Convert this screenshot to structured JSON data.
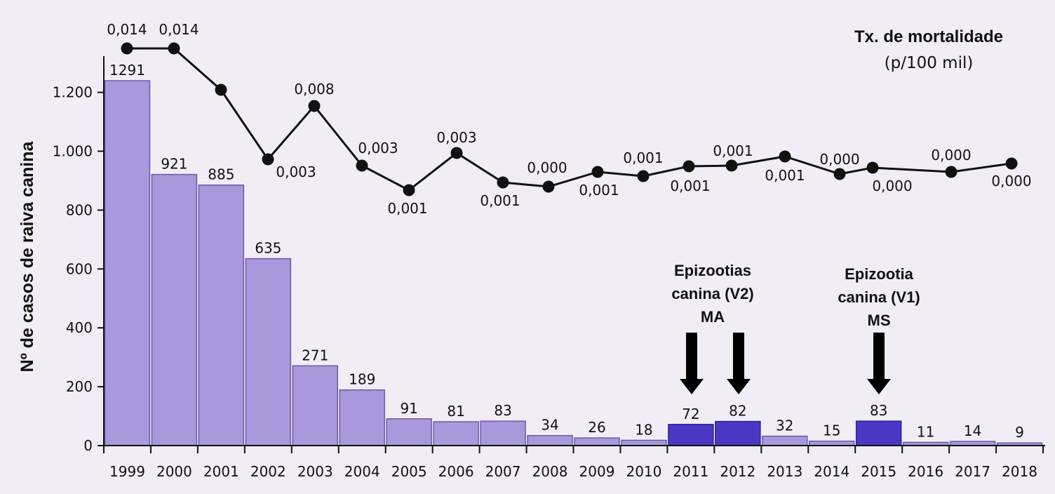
{
  "chart_data": {
    "type": "bar",
    "ylabel": "Nº de casos de raiva canina",
    "ylim": [
      0,
      1200
    ],
    "yticks": [
      0,
      200,
      400,
      600,
      800,
      1000,
      1200
    ],
    "ytick_labels": [
      "0",
      "200",
      "400",
      "600",
      "800",
      "1.000",
      "1.200"
    ],
    "categories": [
      "1999",
      "2000",
      "2001",
      "2002",
      "2003",
      "2004",
      "2005",
      "2006",
      "2007",
      "2008",
      "2009",
      "2010",
      "2011",
      "2012",
      "2013",
      "2014",
      "2015",
      "2016",
      "2017",
      "2018"
    ],
    "values": [
      1291,
      921,
      885,
      635,
      271,
      189,
      91,
      81,
      83,
      34,
      26,
      18,
      72,
      82,
      32,
      15,
      83,
      11,
      14,
      9
    ],
    "highlighted_years": [
      "2011",
      "2012",
      "2015"
    ],
    "colors": {
      "bar": "#a898dc",
      "bar_highlight": "#4a38c4",
      "line": "#111111",
      "background": "#f1edf5"
    },
    "line_series": {
      "name": "Tx. de mortalidade (p/100 mil)",
      "title_line1": "Tx. de mortalidade",
      "title_line2": "(p/100 mil)",
      "values": [
        0.014,
        0.014,
        0.011,
        0.003,
        0.008,
        0.003,
        0.001,
        0.003,
        0.001,
        0.0,
        0.001,
        0.001,
        0.001,
        0.001,
        0.001,
        0.0,
        0.0,
        0.0,
        0.0,
        0.0
      ],
      "labels": [
        "0,014",
        "0,014",
        "",
        "0,003",
        "0,008",
        "0,003",
        "0,001",
        "0,003",
        "0,001",
        "0,000",
        "0,001",
        "0,001",
        "0,001",
        "0,001",
        "0,001",
        "0,000",
        "0,000",
        "",
        "0,000",
        "0,000"
      ]
    },
    "annotations": [
      {
        "lines": [
          "Epizootias",
          "canina (V2)",
          "MA"
        ],
        "years": [
          "2011",
          "2012"
        ]
      },
      {
        "lines": [
          "Epizootia",
          "canina (V1)",
          "MS"
        ],
        "years": [
          "2015"
        ]
      }
    ]
  }
}
